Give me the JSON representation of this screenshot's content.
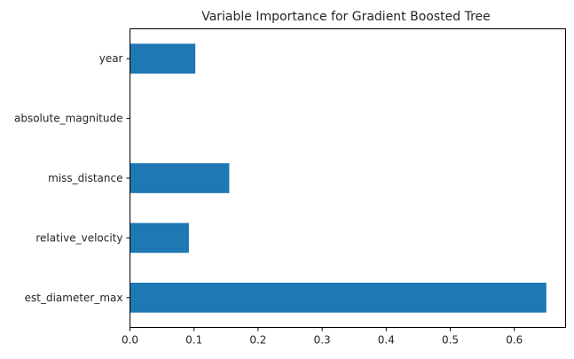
{
  "chart_data": {
    "type": "bar",
    "orientation": "horizontal",
    "title": "Variable Importance for Gradient Boosted Tree",
    "xlabel": "",
    "ylabel": "",
    "categories": [
      "est_diameter_max",
      "relative_velocity",
      "miss_distance",
      "absolute_magnitude",
      "year"
    ],
    "values": [
      0.65,
      0.092,
      0.155,
      0.0,
      0.102
    ],
    "xlim": [
      0.0,
      0.68
    ],
    "xticks": [
      0.0,
      0.1,
      0.2,
      0.3,
      0.4,
      0.5,
      0.6
    ],
    "xtick_labels": [
      "0.0",
      "0.1",
      "0.2",
      "0.3",
      "0.4",
      "0.5",
      "0.6"
    ],
    "grid": false,
    "bar_color": "#1f77b4"
  }
}
